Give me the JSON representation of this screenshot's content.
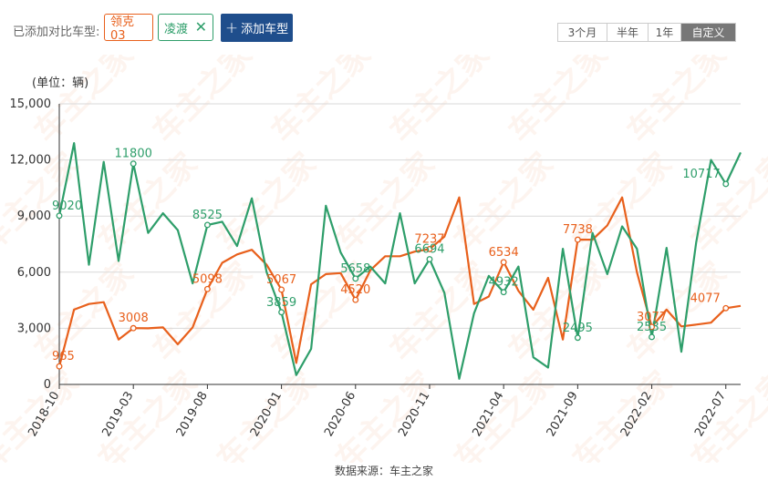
{
  "toolbar": {
    "compare_label": "已添加对比车型:",
    "tags": [
      {
        "label": "领克03",
        "color": "#e8601c"
      },
      {
        "label": "凌渡",
        "color": "#2e9e6a",
        "close": "✕"
      }
    ],
    "add_button": {
      "plus": "+",
      "label": "添加车型"
    },
    "ranges": [
      {
        "label": "3个月",
        "active": false
      },
      {
        "label": "半年",
        "active": false
      },
      {
        "label": "1年",
        "active": false
      },
      {
        "label": "自定义",
        "active": true
      }
    ]
  },
  "footer": {
    "source": "数据来源：车主之家"
  },
  "watermark": {
    "text": "车主之家"
  },
  "chart_data": {
    "type": "line",
    "ylabel": "(单位：辆)",
    "ylim": [
      0,
      15000
    ],
    "yticks": [
      "0",
      "3,000",
      "6,000",
      "9,000",
      "12,000",
      "15,000"
    ],
    "xtick_labels": [
      "2018-10",
      "2019-03",
      "2019-08",
      "2020-01",
      "2020-06",
      "2020-11",
      "2021-04",
      "2021-09",
      "2022-02",
      "2022-07"
    ],
    "grid": true,
    "series": [
      {
        "name": "领克03",
        "color": "#e8601c",
        "values": [
          965,
          4000,
          4300,
          4400,
          2400,
          3008,
          3000,
          3050,
          2150,
          3050,
          5098,
          6500,
          6950,
          7200,
          6400,
          5067,
          1150,
          5350,
          5900,
          5950,
          4520,
          6100,
          6850,
          6850,
          7100,
          7237,
          7900,
          10000,
          4300,
          4700,
          6534,
          5000,
          4000,
          5700,
          2400,
          7738,
          7738,
          8500,
          10000,
          6000,
          3077,
          4000,
          3100,
          3200,
          3300,
          4077,
          4200
        ]
      },
      {
        "name": "凌渡",
        "color": "#2e9e6a",
        "values": [
          9020,
          12900,
          6400,
          11900,
          6600,
          11800,
          8100,
          9150,
          8250,
          5400,
          8525,
          8700,
          7400,
          9950,
          6000,
          3859,
          500,
          1900,
          9550,
          7050,
          5658,
          6300,
          5400,
          9150,
          5400,
          6694,
          4900,
          300,
          3800,
          5800,
          4932,
          6300,
          1450,
          900,
          7250,
          2495,
          8100,
          5900,
          8450,
          7250,
          2535,
          7300,
          1750,
          7600,
          12000,
          10717,
          12400
        ]
      }
    ],
    "point_labels": [
      {
        "series": 0,
        "index": 0,
        "text": "965"
      },
      {
        "series": 0,
        "index": 5,
        "text": "3008"
      },
      {
        "series": 0,
        "index": 10,
        "text": "5098"
      },
      {
        "series": 0,
        "index": 15,
        "text": "5067"
      },
      {
        "series": 0,
        "index": 20,
        "text": "4520"
      },
      {
        "series": 0,
        "index": 25,
        "text": "7237"
      },
      {
        "series": 0,
        "index": 30,
        "text": "6534"
      },
      {
        "series": 0,
        "index": 35,
        "text": "7738"
      },
      {
        "series": 0,
        "index": 40,
        "text": "3077"
      },
      {
        "series": 0,
        "index": 45,
        "text": "4077"
      },
      {
        "series": 1,
        "index": 0,
        "text": "9020"
      },
      {
        "series": 1,
        "index": 5,
        "text": "11800"
      },
      {
        "series": 1,
        "index": 10,
        "text": "8525"
      },
      {
        "series": 1,
        "index": 15,
        "text": "3859"
      },
      {
        "series": 1,
        "index": 20,
        "text": "5658"
      },
      {
        "series": 1,
        "index": 25,
        "text": "6694"
      },
      {
        "series": 1,
        "index": 30,
        "text": "4932"
      },
      {
        "series": 1,
        "index": 35,
        "text": "2495"
      },
      {
        "series": 1,
        "index": 40,
        "text": "2535"
      },
      {
        "series": 1,
        "index": 45,
        "text": "10717"
      }
    ]
  }
}
